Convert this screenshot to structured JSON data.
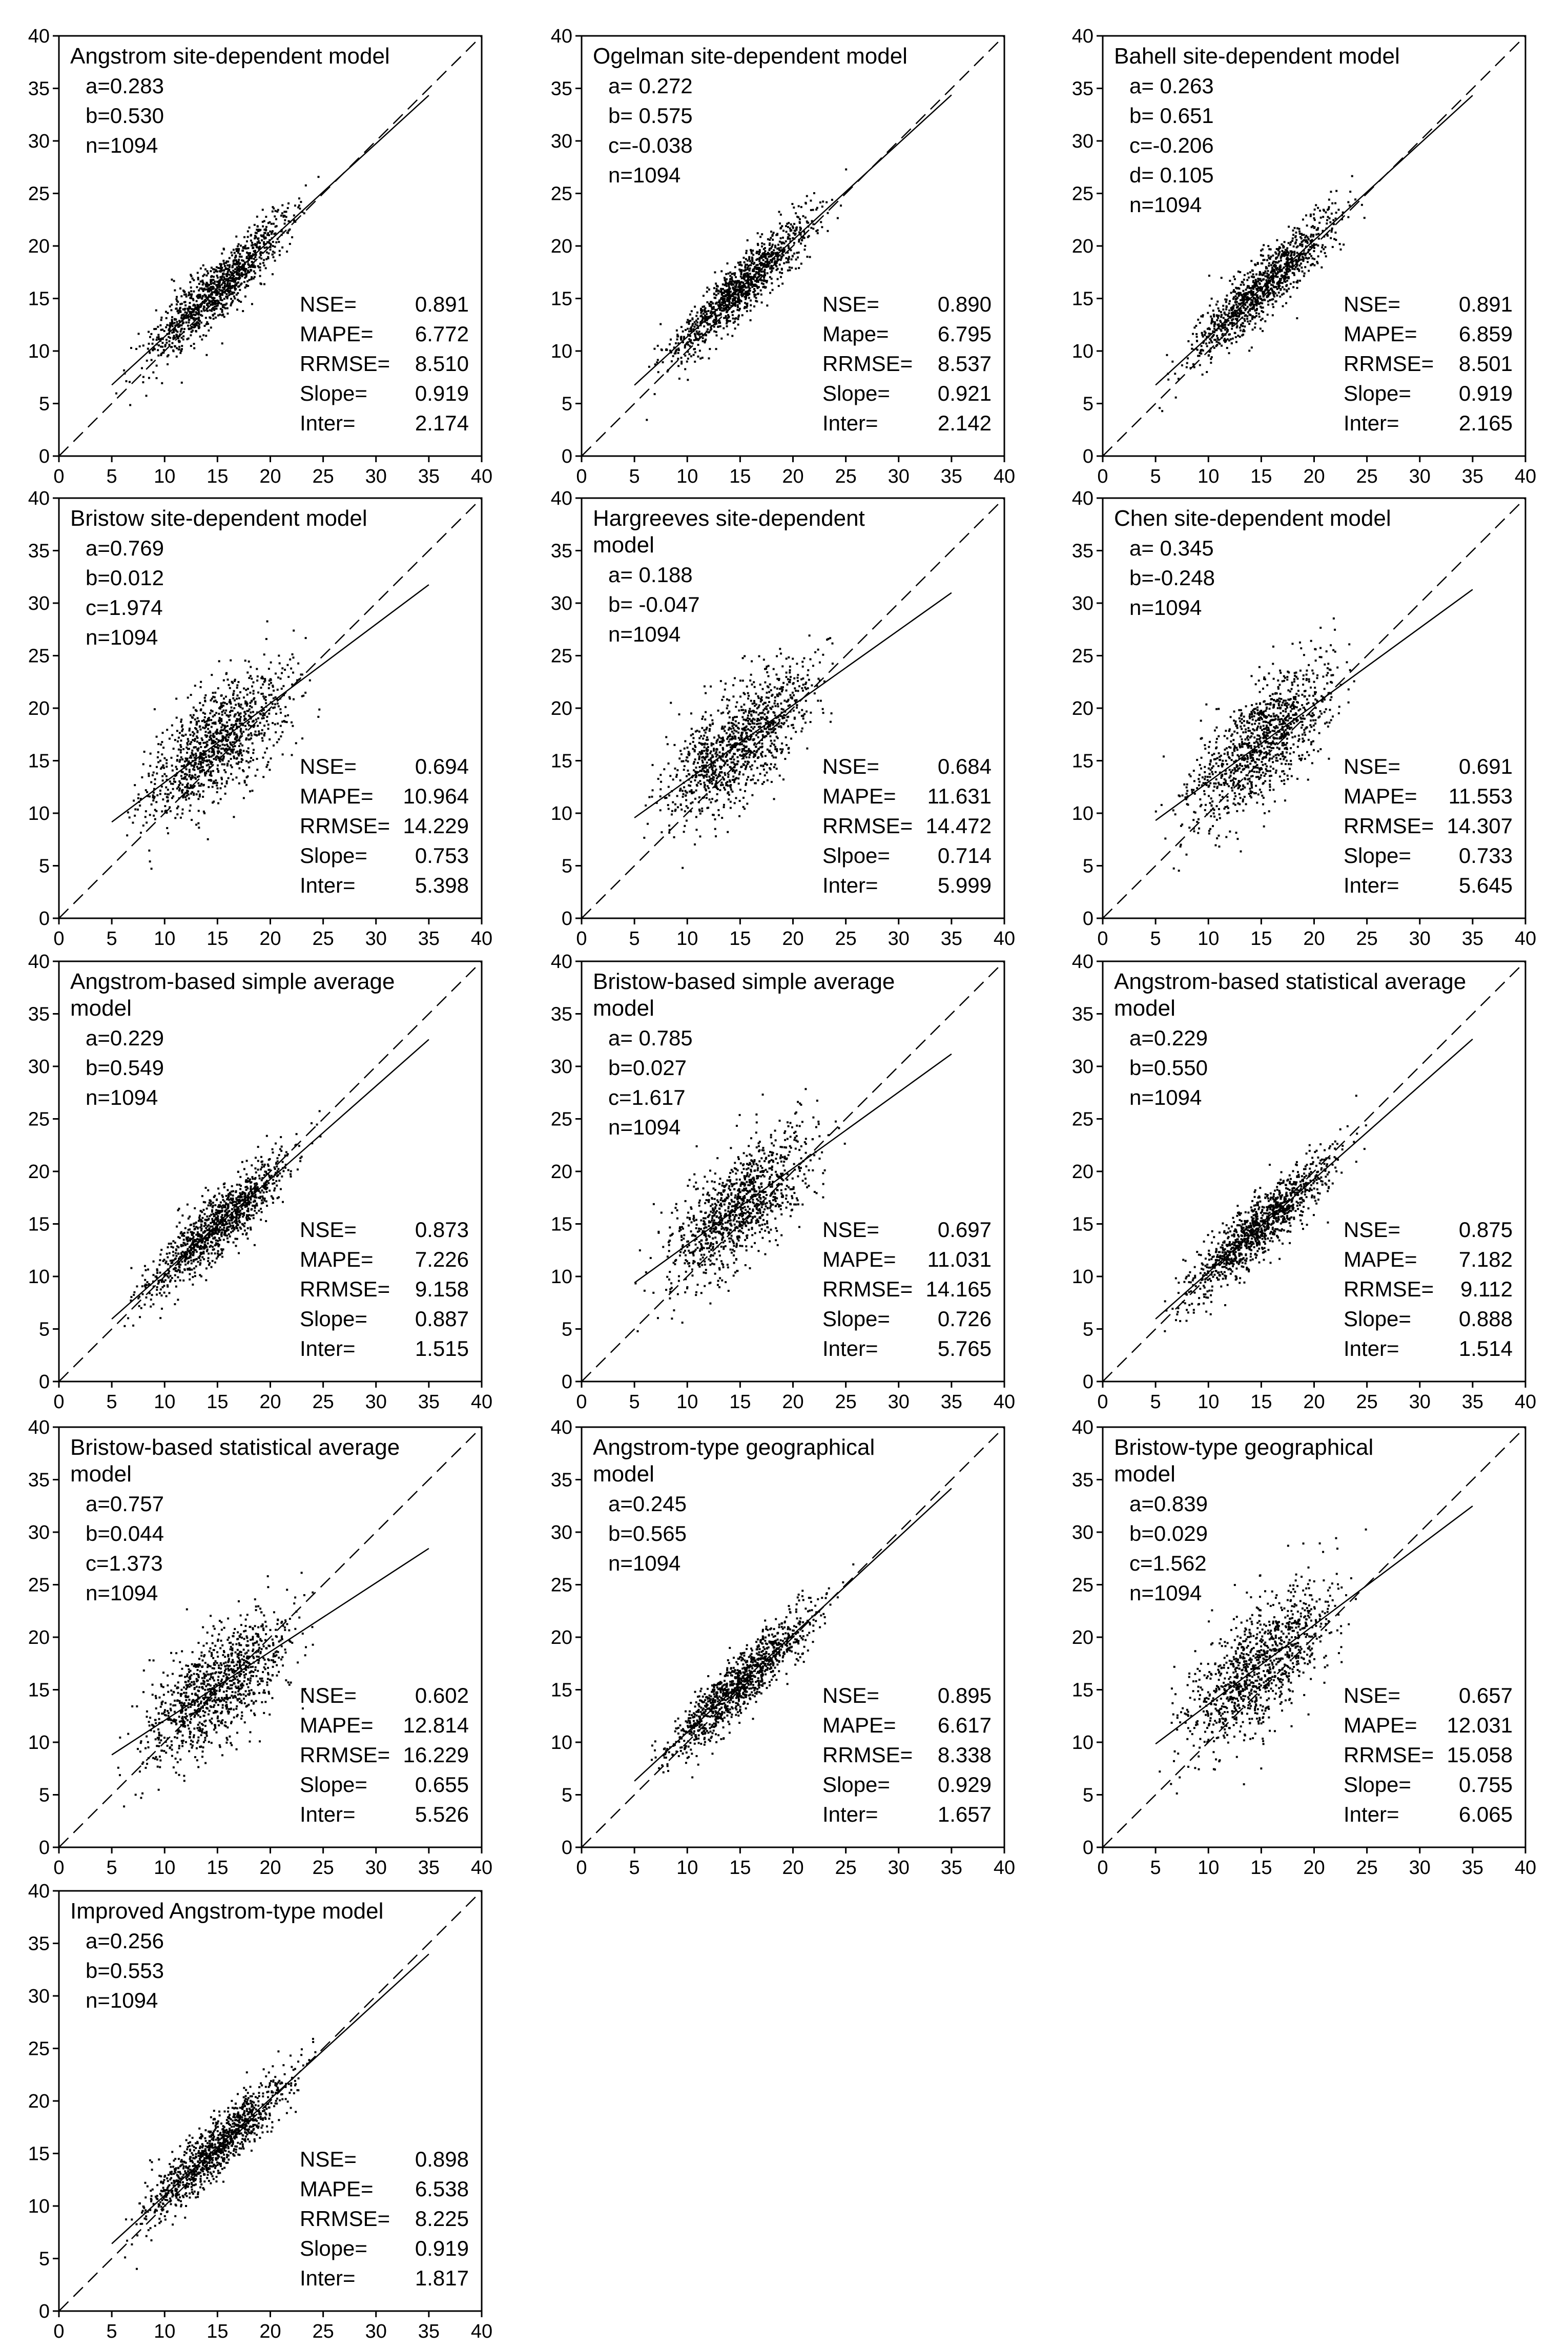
{
  "chart_data": [
    {
      "type": "scatter",
      "title": "Angstrom site-dependent model",
      "params": [
        "a=0.283",
        "b=0.530",
        "n=1094"
      ],
      "stats": [
        [
          "NSE=",
          "0.891"
        ],
        [
          "MAPE=",
          "6.772"
        ],
        [
          "RRMSE=",
          "8.510"
        ],
        [
          "Slope=",
          "0.919"
        ],
        [
          "Inter=",
          "2.174"
        ]
      ],
      "slope": 0.919,
      "intercept": 2.174,
      "spread": 1.4,
      "xlim": [
        0,
        40
      ],
      "ylim": [
        0,
        40
      ],
      "ticks": [
        0,
        5,
        10,
        15,
        20,
        25,
        30,
        35,
        40
      ]
    },
    {
      "type": "scatter",
      "title": "Ogelman site-dependent model",
      "params": [
        "a= 0.272",
        "b= 0.575",
        "c=-0.038",
        "n=1094"
      ],
      "stats": [
        [
          "NSE=",
          "0.890"
        ],
        [
          "Mape=",
          "6.795"
        ],
        [
          "RRMSE=",
          "8.537"
        ],
        [
          "Slope=",
          "0.921"
        ],
        [
          "Inter=",
          "2.142"
        ]
      ],
      "slope": 0.921,
      "intercept": 2.142,
      "spread": 1.4,
      "xlim": [
        0,
        40
      ],
      "ylim": [
        0,
        40
      ],
      "ticks": [
        0,
        5,
        10,
        15,
        20,
        25,
        30,
        35,
        40
      ]
    },
    {
      "type": "scatter",
      "title": "Bahell site-dependent model",
      "params": [
        "a= 0.263",
        "b= 0.651",
        "c=-0.206",
        "d= 0.105",
        "n=1094"
      ],
      "stats": [
        [
          "NSE=",
          "0.891"
        ],
        [
          "MAPE=",
          "6.859"
        ],
        [
          "RRMSE=",
          "8.501"
        ],
        [
          "Slope=",
          "0.919"
        ],
        [
          "Inter=",
          "2.165"
        ]
      ],
      "slope": 0.919,
      "intercept": 2.165,
      "spread": 1.4,
      "xlim": [
        0,
        40
      ],
      "ylim": [
        0,
        40
      ],
      "ticks": [
        0,
        5,
        10,
        15,
        20,
        25,
        30,
        35,
        40
      ]
    },
    {
      "type": "scatter",
      "title": "Bristow site-dependent model",
      "params": [
        "a=0.769",
        "b=0.012",
        "c=1.974",
        "n=1094"
      ],
      "stats": [
        [
          "NSE=",
          "0.694"
        ],
        [
          "MAPE=",
          "10.964"
        ],
        [
          "RRMSE=",
          "14.229"
        ],
        [
          "Slope=",
          "0.753"
        ],
        [
          "Inter=",
          "5.398"
        ]
      ],
      "slope": 0.753,
      "intercept": 5.398,
      "spread": 2.6,
      "xlim": [
        0,
        40
      ],
      "ylim": [
        0,
        40
      ],
      "ticks": [
        0,
        5,
        10,
        15,
        20,
        25,
        30,
        35,
        40
      ]
    },
    {
      "type": "scatter",
      "title": "Hargreeves site-dependent model",
      "params": [
        "a= 0.188",
        "b= -0.047",
        "n=1094"
      ],
      "stats": [
        [
          "NSE=",
          "0.684"
        ],
        [
          "MAPE=",
          "11.631"
        ],
        [
          "RRMSE=",
          "14.472"
        ],
        [
          "Slpoe=",
          "0.714"
        ],
        [
          "Inter=",
          "5.999"
        ]
      ],
      "slope": 0.714,
      "intercept": 5.999,
      "spread": 2.7,
      "xlim": [
        0,
        40
      ],
      "ylim": [
        0,
        40
      ],
      "ticks": [
        0,
        5,
        10,
        15,
        20,
        25,
        30,
        35,
        40
      ]
    },
    {
      "type": "scatter",
      "title": "Chen site-dependent model",
      "params": [
        "a= 0.345",
        "b=-0.248",
        "n=1094"
      ],
      "stats": [
        [
          "NSE=",
          "0.691"
        ],
        [
          "MAPE=",
          "11.553"
        ],
        [
          "RRMSE=",
          "14.307"
        ],
        [
          "Slope=",
          "0.733"
        ],
        [
          "Inter=",
          "5.645"
        ]
      ],
      "slope": 0.733,
      "intercept": 5.645,
      "spread": 2.7,
      "xlim": [
        0,
        40
      ],
      "ylim": [
        0,
        40
      ],
      "ticks": [
        0,
        5,
        10,
        15,
        20,
        25,
        30,
        35,
        40
      ]
    },
    {
      "type": "scatter",
      "title": "Angstrom-based simple average model",
      "params": [
        "a=0.229",
        "b=0.549",
        "n=1094"
      ],
      "stats": [
        [
          "NSE=",
          "0.873"
        ],
        [
          "MAPE=",
          "7.226"
        ],
        [
          "RRMSE=",
          "9.158"
        ],
        [
          "Slope=",
          "0.887"
        ],
        [
          "Inter=",
          "1.515"
        ]
      ],
      "slope": 0.887,
      "intercept": 1.515,
      "spread": 1.5,
      "xlim": [
        0,
        40
      ],
      "ylim": [
        0,
        40
      ],
      "ticks": [
        0,
        5,
        10,
        15,
        20,
        25,
        30,
        35,
        40
      ]
    },
    {
      "type": "scatter",
      "title": "Bristow-based simple average model",
      "params": [
        "a= 0.785",
        "b=0.027",
        "c=1.617",
        "n=1094"
      ],
      "stats": [
        [
          "NSE=",
          "0.697"
        ],
        [
          "MAPE=",
          "11.031"
        ],
        [
          "RRMSE=",
          "14.165"
        ],
        [
          "Slope=",
          "0.726"
        ],
        [
          "Inter=",
          "5.765"
        ]
      ],
      "slope": 0.726,
      "intercept": 5.765,
      "spread": 2.6,
      "xlim": [
        0,
        40
      ],
      "ylim": [
        0,
        40
      ],
      "ticks": [
        0,
        5,
        10,
        15,
        20,
        25,
        30,
        35,
        40
      ]
    },
    {
      "type": "scatter",
      "title": "Angstrom-based statistical average model",
      "params": [
        "a=0.229",
        "b=0.550",
        "n=1094"
      ],
      "stats": [
        [
          "NSE=",
          "0.875"
        ],
        [
          "MAPE=",
          "7.182"
        ],
        [
          "RRMSE=",
          "9.112"
        ],
        [
          "Slope=",
          "0.888"
        ],
        [
          "Inter=",
          "1.514"
        ]
      ],
      "slope": 0.888,
      "intercept": 1.514,
      "spread": 1.5,
      "xlim": [
        0,
        40
      ],
      "ylim": [
        0,
        40
      ],
      "ticks": [
        0,
        5,
        10,
        15,
        20,
        25,
        30,
        35,
        40
      ]
    },
    {
      "type": "scatter",
      "title": "Bristow-based statistical average model",
      "params": [
        "a=0.757",
        "b=0.044",
        "c=1.373",
        "n=1094"
      ],
      "stats": [
        [
          "NSE=",
          "0.602"
        ],
        [
          "MAPE=",
          "12.814"
        ],
        [
          "RRMSE=",
          "16.229"
        ],
        [
          "Slope=",
          "0.655"
        ],
        [
          "Inter=",
          "5.526"
        ]
      ],
      "slope": 0.655,
      "intercept": 5.526,
      "spread": 2.6,
      "xlim": [
        0,
        40
      ],
      "ylim": [
        0,
        40
      ],
      "ticks": [
        0,
        5,
        10,
        15,
        20,
        25,
        30,
        35,
        40
      ]
    },
    {
      "type": "scatter",
      "title": "Angstrom-type geographical model",
      "params": [
        "a=0.245",
        "b=0.565",
        "n=1094"
      ],
      "stats": [
        [
          "NSE=",
          "0.895"
        ],
        [
          "MAPE=",
          "6.617"
        ],
        [
          "RRMSE=",
          "8.338"
        ],
        [
          "Slope=",
          "0.929"
        ],
        [
          "Inter=",
          "1.657"
        ]
      ],
      "slope": 0.929,
      "intercept": 1.657,
      "spread": 1.4,
      "xlim": [
        0,
        40
      ],
      "ylim": [
        0,
        40
      ],
      "ticks": [
        0,
        5,
        10,
        15,
        20,
        25,
        30,
        35,
        40
      ]
    },
    {
      "type": "scatter",
      "title": "Bristow-type geographical model",
      "params": [
        "a=0.839",
        "b=0.029",
        "c=1.562",
        "n=1094"
      ],
      "stats": [
        [
          "NSE=",
          "0.657"
        ],
        [
          "MAPE=",
          "12.031"
        ],
        [
          "RRMSE=",
          "15.058"
        ],
        [
          "Slope=",
          "0.755"
        ],
        [
          "Inter=",
          "6.065"
        ]
      ],
      "slope": 0.755,
      "intercept": 6.065,
      "spread": 2.8,
      "xlim": [
        0,
        40
      ],
      "ylim": [
        0,
        40
      ],
      "ticks": [
        0,
        5,
        10,
        15,
        20,
        25,
        30,
        35,
        40
      ]
    },
    {
      "type": "scatter",
      "title": "Improved Angstrom-type model",
      "params": [
        "a=0.256",
        "b=0.553",
        "n=1094"
      ],
      "stats": [
        [
          "NSE=",
          "0.898"
        ],
        [
          "MAPE=",
          "6.538"
        ],
        [
          "RRMSE=",
          "8.225"
        ],
        [
          "Slope=",
          "0.919"
        ],
        [
          "Inter=",
          "1.817"
        ]
      ],
      "slope": 0.919,
      "intercept": 1.817,
      "spread": 1.4,
      "xlim": [
        0,
        40
      ],
      "ylim": [
        0,
        40
      ],
      "ticks": [
        0,
        5,
        10,
        15,
        20,
        25,
        30,
        35,
        40
      ]
    }
  ]
}
